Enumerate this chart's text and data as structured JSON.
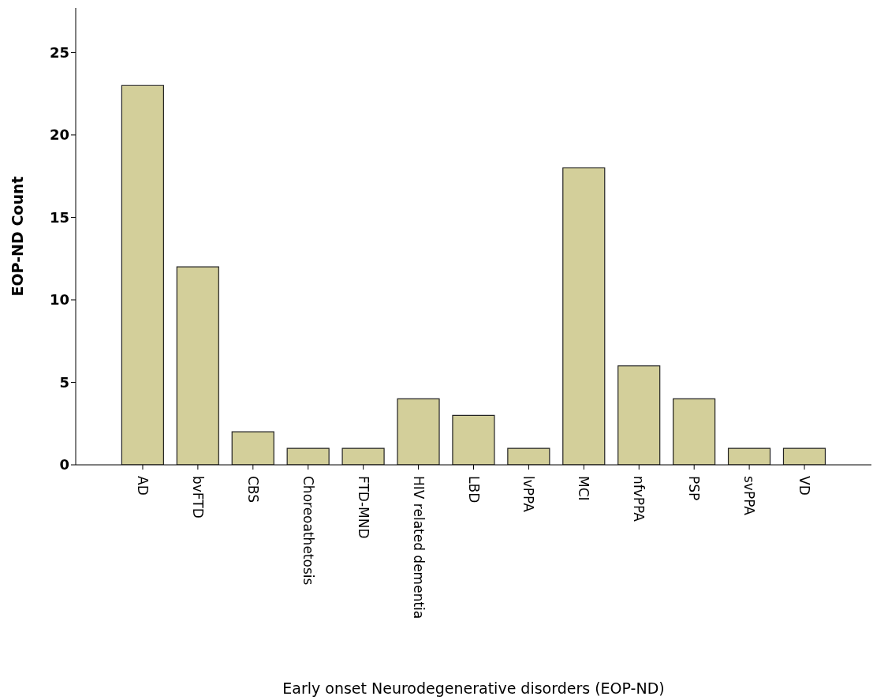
{
  "chart_data": {
    "type": "bar",
    "categories": [
      "AD",
      "bvFTD",
      "CBS",
      "Choreoathetosis",
      "FTD-MND",
      "HIV related dementia",
      "LBD",
      "lvPPA",
      "MCI",
      "nfvPPA",
      "PSP",
      "svPPA",
      "VD"
    ],
    "values": [
      23,
      12,
      2,
      1,
      1,
      4,
      3,
      1,
      18,
      6,
      4,
      1,
      1
    ],
    "color": "#d3cf9a",
    "xlabel": "Early onset Neurodegenerative disorders (EOP-ND)",
    "ylabel": "EOP-ND Count",
    "ylim": [
      0,
      27.7
    ],
    "yticks": [
      0,
      5,
      10,
      15,
      20,
      25
    ],
    "grid": false,
    "legend": false
  }
}
